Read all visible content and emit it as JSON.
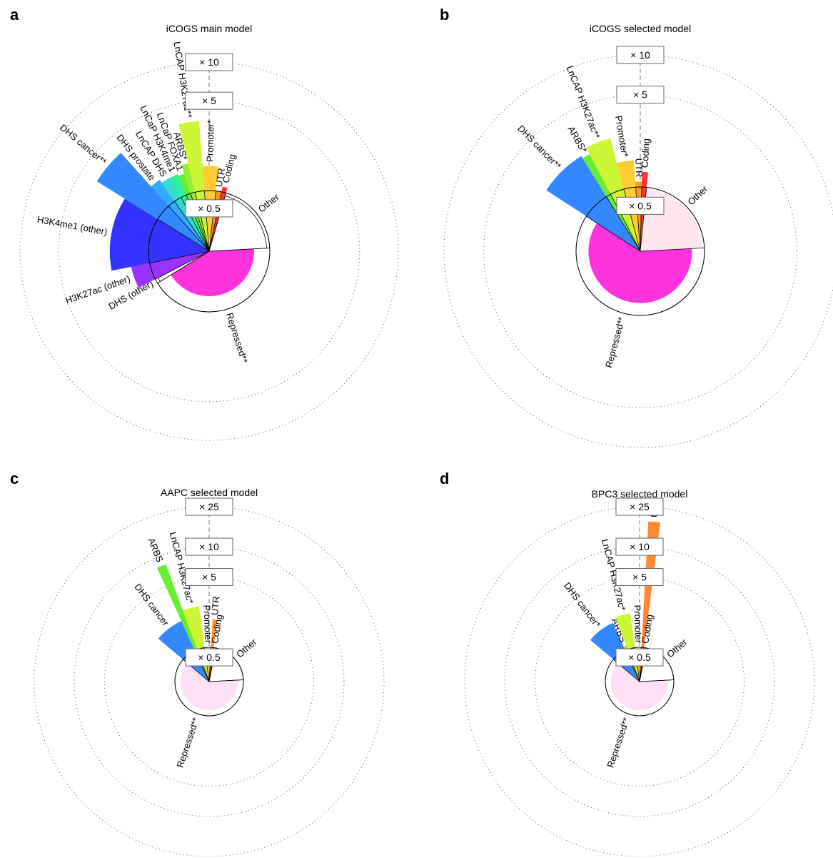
{
  "chart_data": [
    {
      "letter": "a",
      "title": "iCOGS main model",
      "type": "radial-bar",
      "scale_labels": [
        {
          "text": "× 10",
          "value": 10
        },
        {
          "text": "× 5",
          "value": 5
        },
        {
          "text": "× 0.5",
          "value": 0.5
        }
      ],
      "reference_value": 1,
      "categories": [
        {
          "label": "Repressed**",
          "share": 0.42,
          "value": 0.55,
          "color": "#ff33dd"
        },
        {
          "label": "DHS (other)",
          "share": 0.012,
          "value": 0.9,
          "color": "#ffffff"
        },
        {
          "label": "H3K27ac (other)",
          "share": 0.045,
          "value": 1.4,
          "color": "#9933ff"
        },
        {
          "label": "H3K4me1 (other)",
          "share": 0.12,
          "value": 2.0,
          "color": "#3333ff"
        },
        {
          "label": "DHS cancer**",
          "share": 0.045,
          "value": 3.6,
          "color": "#3388ff"
        },
        {
          "label": "DHS prostate",
          "share": 0.02,
          "value": 1.6,
          "color": "#33aaff"
        },
        {
          "label": "LnCAP DHS",
          "share": 0.02,
          "value": 1.5,
          "color": "#33ddcc"
        },
        {
          "label": "LnCaP H3K4me1",
          "share": 0.015,
          "value": 1.5,
          "color": "#33ee99"
        },
        {
          "label": "LnCaP FOXA1",
          "share": 0.012,
          "value": 1.45,
          "color": "#66ee33"
        },
        {
          "label": "ARBS*",
          "share": 0.012,
          "value": 1.7,
          "color": "#99ee33"
        },
        {
          "label": "LnCAP H3K27ac**",
          "share": 0.025,
          "value": 3.5,
          "color": "#ccf533"
        },
        {
          "label": "Promoter*",
          "share": 0.03,
          "value": 1.55,
          "color": "#ffcc33"
        },
        {
          "label": "UTR",
          "share": 0.015,
          "value": 1.0,
          "color": "#ff9922"
        },
        {
          "label": "Coding",
          "share": 0.012,
          "value": 1.1,
          "color": "#ff3333"
        },
        {
          "label": "Other",
          "share": 0.197,
          "value": 0.9,
          "color": "#ffffff"
        }
      ]
    },
    {
      "letter": "b",
      "title": "iCOGS selected model",
      "type": "radial-bar",
      "scale_labels": [
        {
          "text": "× 10",
          "value": 10
        },
        {
          "text": "× 5",
          "value": 5
        },
        {
          "text": "× 0.5",
          "value": 0.5
        }
      ],
      "reference_value": 1,
      "categories": [
        {
          "label": "Repressed**",
          "share": 0.6,
          "value": 0.65,
          "color": "#ff33dd"
        },
        {
          "label": "DHS cancer**",
          "share": 0.07,
          "value": 2.3,
          "color": "#3388ff"
        },
        {
          "label": "ARBS*",
          "share": 0.012,
          "value": 2.2,
          "color": "#66ee33"
        },
        {
          "label": "LnCAP H3K27ac**",
          "share": 0.035,
          "value": 2.5,
          "color": "#ccf533"
        },
        {
          "label": "Promoter*",
          "share": 0.03,
          "value": 1.6,
          "color": "#ffcc33"
        },
        {
          "label": "UTR",
          "share": 0.015,
          "value": 1.1,
          "color": "#ff9922"
        },
        {
          "label": "Coding",
          "share": 0.012,
          "value": 1.3,
          "color": "#ff3333"
        },
        {
          "label": "Other",
          "share": 0.226,
          "value": 0.95,
          "color": "#ffe6ee"
        }
      ]
    },
    {
      "letter": "c",
      "title": "AAPC selected model",
      "type": "radial-bar",
      "scale_labels": [
        {
          "text": "× 25",
          "value": 25
        },
        {
          "text": "× 10",
          "value": 10
        },
        {
          "text": "× 5",
          "value": 5
        },
        {
          "text": "× 0.5",
          "value": 0.5
        }
      ],
      "reference_value": 1,
      "categories": [
        {
          "label": "Repressed**",
          "share": 0.62,
          "value": 0.7,
          "color": "#ffe0f6"
        },
        {
          "label": "DHS cancer",
          "share": 0.07,
          "value": 2.1,
          "color": "#3388ff"
        },
        {
          "label": "ARBS",
          "share": 0.012,
          "value": 8.0,
          "color": "#66ee33"
        },
        {
          "label": "LnCAP H3K27ac*",
          "share": 0.035,
          "value": 2.6,
          "color": "#ccf533"
        },
        {
          "label": "Promoter",
          "share": 0.03,
          "value": 0.9,
          "color": "#ffcc33"
        },
        {
          "label": "UTR",
          "share": 0.012,
          "value": 1.9,
          "color": "#ff9922"
        },
        {
          "label": "Coding",
          "share": 0.01,
          "value": 0.9,
          "color": "#ff3333"
        },
        {
          "label": "Other",
          "share": 0.211,
          "value": 1.0,
          "color": "#ffffff"
        }
      ]
    },
    {
      "letter": "d",
      "title": "BPC3 selected model",
      "type": "radial-bar",
      "scale_labels": [
        {
          "text": "× 25",
          "value": 25
        },
        {
          "text": "× 10",
          "value": 10
        },
        {
          "text": "× 5",
          "value": 5
        },
        {
          "text": "× 0.5",
          "value": 0.5
        }
      ],
      "reference_value": 1,
      "categories": [
        {
          "label": "Repressed**",
          "share": 0.62,
          "value": 0.7,
          "color": "#ffe0f6"
        },
        {
          "label": "DHS cancer*",
          "share": 0.07,
          "value": 2.0,
          "color": "#3388ff"
        },
        {
          "label": "ARBS",
          "share": 0.012,
          "value": 1.1,
          "color": "#66ee33"
        },
        {
          "label": "LnCAP H3K27ac*",
          "share": 0.035,
          "value": 2.2,
          "color": "#ccf533"
        },
        {
          "label": "Promoter",
          "share": 0.03,
          "value": 0.9,
          "color": "#ffcc33"
        },
        {
          "label": "UTR",
          "share": 0.012,
          "value": 18.0,
          "color": "#ff8833"
        },
        {
          "label": "Coding",
          "share": 0.01,
          "value": 0.9,
          "color": "#ff3333"
        },
        {
          "label": "Other",
          "share": 0.211,
          "value": 1.0,
          "color": "#ffffff"
        }
      ]
    }
  ]
}
